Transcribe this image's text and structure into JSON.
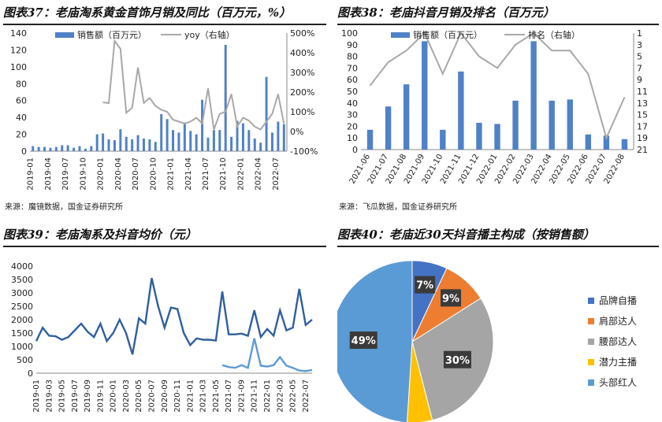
{
  "panels": {
    "p37": {
      "title": "图表37：老庙淘系黄金首饰月销及同比（百万元，%）",
      "source": "来源：魔镜数据，国金证券研究所"
    },
    "p38": {
      "title": "图表38：老庙抖音月销及排名（百万元）",
      "source": "来源：飞瓜数据，国金证券研究所"
    },
    "p39": {
      "title": "图表39：老庙淘系及抖音均价（元）"
    },
    "p40": {
      "title": "图表40：老庙近30天抖音播主构成（按销售额）"
    }
  },
  "colors": {
    "bar": "#4f81c7",
    "gray": "#a8a8a8",
    "blue_line": "#2f5f9e",
    "light_blue": "#5b9bd5"
  },
  "chart_data": [
    {
      "id": "c37",
      "type": "bar",
      "categories": [
        "2019-01",
        "2019-02",
        "2019-03",
        "2019-04",
        "2019-05",
        "2019-06",
        "2019-07",
        "2019-08",
        "2019-09",
        "2019-10",
        "2019-11",
        "2019-12",
        "2020-01",
        "2020-02",
        "2020-03",
        "2020-04",
        "2020-05",
        "2020-06",
        "2020-07",
        "2020-08",
        "2020-09",
        "2020-10",
        "2020-11",
        "2020-12",
        "2021-01",
        "2021-02",
        "2021-03",
        "2021-04",
        "2021-05",
        "2021-06",
        "2021-07",
        "2021-08",
        "2021-09",
        "2021-10",
        "2021-11",
        "2021-12",
        "2022-01",
        "2022-02",
        "2022-03",
        "2022-04",
        "2022-05",
        "2022-06",
        "2022-07",
        "2022-08"
      ],
      "tick_labels": [
        "2019-01",
        "2019-04",
        "2019-07",
        "2019-10",
        "2020-01",
        "2020-04",
        "2020-07",
        "2020-10",
        "2021-01",
        "2021-04",
        "2021-07",
        "2021-10",
        "2022-01",
        "2022-04",
        "2022-07"
      ],
      "series": [
        {
          "name": "销售额（百万元）",
          "axis": "left",
          "kind": "bar",
          "values": [
            6,
            5,
            5,
            4,
            5,
            7,
            7,
            4,
            6,
            3,
            6,
            20,
            21,
            14,
            13,
            26,
            17,
            14,
            19,
            15,
            14,
            11,
            44,
            38,
            25,
            22,
            34,
            24,
            20,
            61,
            16,
            25,
            25,
            126,
            17,
            36,
            33,
            25,
            15,
            10,
            88,
            22,
            35,
            32
          ]
        },
        {
          "name": "yoy（右轴）",
          "axis": "right",
          "kind": "line",
          "values": [
            null,
            null,
            null,
            null,
            null,
            null,
            null,
            null,
            null,
            null,
            null,
            null,
            148,
            144,
            460,
            420,
            95,
            120,
            325,
            145,
            170,
            130,
            110,
            100,
            60,
            50,
            40,
            50,
            70,
            40,
            220,
            10,
            90,
            100,
            190,
            25,
            70,
            55,
            25,
            10,
            50,
            90,
            190,
            40
          ]
        }
      ],
      "ylim_left": [
        0,
        140
      ],
      "yticks_left": [
        0,
        20,
        40,
        60,
        80,
        100,
        120,
        140
      ],
      "ylim_right": [
        -100,
        500
      ],
      "yticks_right": [
        "-100%",
        "0%",
        "100%",
        "200%",
        "300%",
        "400%",
        "500%"
      ],
      "legend": "top"
    },
    {
      "id": "c38",
      "type": "bar",
      "categories": [
        "2021-06",
        "2021-07",
        "2021-08",
        "2021-09",
        "2021-10",
        "2021-11",
        "2021-12",
        "2022-01",
        "2022-02",
        "2022-03",
        "2022-04",
        "2022-05",
        "2022-06",
        "2022-07",
        "2022-08"
      ],
      "series": [
        {
          "name": "销售额（百万元）",
          "axis": "left",
          "kind": "bar",
          "values": [
            17,
            37,
            56,
            93,
            17,
            67,
            23,
            22,
            42,
            93,
            42,
            43,
            13,
            12,
            9
          ]
        },
        {
          "name": "排名（右轴）",
          "axis": "right",
          "kind": "line",
          "values": [
            10,
            6,
            4,
            1,
            8,
            1,
            5,
            7,
            3,
            1,
            4,
            4,
            8,
            19,
            12
          ]
        }
      ],
      "ylim_left": [
        0,
        100
      ],
      "yticks_left": [
        0,
        10,
        20,
        30,
        40,
        50,
        60,
        70,
        80,
        90,
        100
      ],
      "ylim_right": [
        21,
        1
      ],
      "yticks_right": [
        1,
        3,
        5,
        7,
        9,
        11,
        13,
        15,
        17,
        19,
        21
      ],
      "legend": "top"
    },
    {
      "id": "c39",
      "type": "line",
      "categories": [
        "2019-01",
        "2019-02",
        "2019-03",
        "2019-04",
        "2019-05",
        "2019-06",
        "2019-07",
        "2019-08",
        "2019-09",
        "2019-10",
        "2019-11",
        "2019-12",
        "2020-01",
        "2020-02",
        "2020-03",
        "2020-04",
        "2020-05",
        "2020-06",
        "2020-07",
        "2020-08",
        "2020-09",
        "2020-10",
        "2020-11",
        "2020-12",
        "2021-01",
        "2021-02",
        "2021-03",
        "2021-04",
        "2021-05",
        "2021-06",
        "2021-07",
        "2021-08",
        "2021-09",
        "2021-10",
        "2021-11",
        "2021-12",
        "2022-01",
        "2022-02",
        "2022-03",
        "2022-04",
        "2022-05",
        "2022-06",
        "2022-07",
        "2022-08"
      ],
      "tick_labels": [
        "2019-01",
        "2019-03",
        "2019-05",
        "2019-07",
        "2019-09",
        "2019-11",
        "2020-01",
        "2020-03",
        "2020-05",
        "2020-07",
        "2020-09",
        "2020-11",
        "2021-01",
        "2021-03",
        "2021-05",
        "2021-07",
        "2021-09",
        "2021-11",
        "2022-01",
        "2022-03",
        "2022-05",
        "2022-07"
      ],
      "series": [
        {
          "kind": "line",
          "color_key": "blue_line",
          "values": [
            1200,
            1700,
            1400,
            1380,
            1250,
            1350,
            1600,
            1850,
            1550,
            1350,
            1850,
            1200,
            1500,
            2000,
            1500,
            700,
            2050,
            1850,
            3550,
            2500,
            1700,
            2450,
            2400,
            1500,
            1050,
            1300,
            1250,
            1250,
            1220,
            3050,
            1450,
            1450,
            1480,
            1400,
            2350,
            1350,
            1650,
            1400,
            2350,
            1600,
            1700,
            3150,
            1800,
            2000
          ]
        },
        {
          "kind": "line",
          "color_key": "light_blue",
          "values": [
            null,
            null,
            null,
            null,
            null,
            null,
            null,
            null,
            null,
            null,
            null,
            null,
            null,
            null,
            null,
            null,
            null,
            null,
            null,
            null,
            null,
            null,
            null,
            null,
            null,
            null,
            null,
            null,
            null,
            300,
            230,
            200,
            300,
            200,
            1300,
            280,
            250,
            300,
            600,
            280,
            200,
            100,
            80,
            120
          ]
        }
      ],
      "ylim": [
        0,
        4000
      ],
      "yticks": [
        0,
        500,
        1000,
        1500,
        2000,
        2500,
        3000,
        3500,
        4000
      ]
    },
    {
      "id": "c40",
      "type": "pie",
      "slices": [
        {
          "label": "品牌自播",
          "value": 7,
          "text": "7%",
          "color": "#4472c4"
        },
        {
          "label": "肩部达人",
          "value": 9,
          "text": "9%",
          "color": "#ed7d31"
        },
        {
          "label": "腰部达人",
          "value": 30,
          "text": "30%",
          "color": "#a5a5a5"
        },
        {
          "label": "潜力主播",
          "value": 5,
          "text": "",
          "color": "#ffc000"
        },
        {
          "label": "头部红人",
          "value": 49,
          "text": "49%",
          "color": "#5b9bd5"
        }
      ],
      "legend": "right"
    }
  ]
}
